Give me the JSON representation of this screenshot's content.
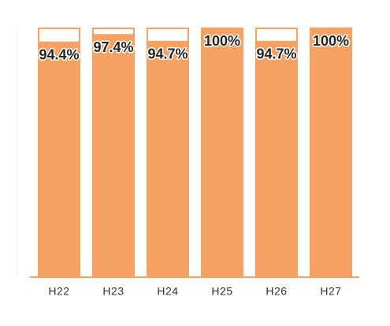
{
  "chart_data": {
    "type": "bar",
    "categories": [
      "H22",
      "H23",
      "H24",
      "H25",
      "H26",
      "H27"
    ],
    "values": [
      94.4,
      97.4,
      94.7,
      100,
      94.7,
      100
    ],
    "value_labels": [
      "94.4%",
      "97.4%",
      "94.7%",
      "100%",
      "94.7%",
      "100%"
    ],
    "color": "#f7a162",
    "ylim": [
      0,
      100
    ]
  }
}
